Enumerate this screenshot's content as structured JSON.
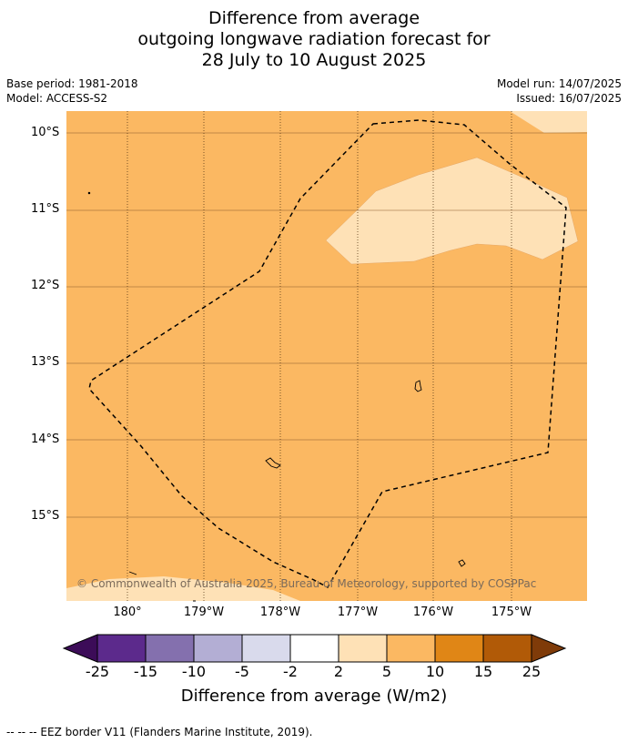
{
  "title": {
    "line1": "Difference from average",
    "line2": "outgoing longwave radiation forecast for",
    "line3": "28 July to 10 August 2025"
  },
  "meta": {
    "base_period": "Base period: 1981-2018",
    "model": "Model: ACCESS-S2",
    "model_run": "Model run: 14/07/2025",
    "issued": "Issued: 16/07/2025"
  },
  "map": {
    "lat_labels": [
      "10°S",
      "11°S",
      "12°S",
      "13°S",
      "14°S",
      "15°S"
    ],
    "lon_labels": [
      "180°",
      "179°W",
      "178°W",
      "177°W",
      "176°W",
      "175°W"
    ],
    "copyright": "© Commonwealth of Australia 2025, Bureau of Meteorology, supported by COSPPac",
    "colors": {
      "background_anomaly": "#fbb862",
      "light_anomaly": "#fee1b6",
      "gridline": "#8a5a2a",
      "eez_border": "#000000"
    },
    "fill_categories": {
      "background": "5 to 10",
      "highlight": "2 to 5"
    }
  },
  "colorbar": {
    "labels": [
      "-25",
      "-15",
      "-10",
      "-5",
      "-2",
      "2",
      "5",
      "10",
      "15",
      "25"
    ],
    "colors": [
      "#3c0c58",
      "#5c2a8c",
      "#8470ae",
      "#b3aed4",
      "#d9daec",
      "#ffffff",
      "#fee1b6",
      "#fbb862",
      "#e08616",
      "#b15a07",
      "#7f3b09"
    ],
    "title": "Difference from average (W/m2)"
  },
  "footer": {
    "eez_note": "--  --  -- EEZ border V11 (Flanders Marine Institute, 2019)."
  }
}
